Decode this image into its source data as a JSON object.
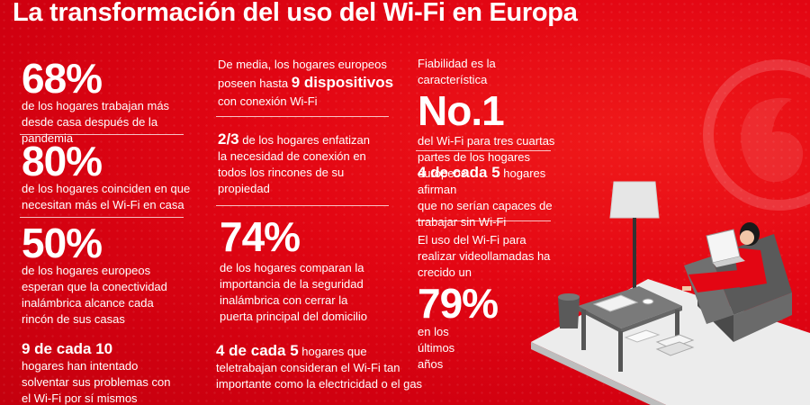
{
  "title": "La transformación del uso del Wi-Fi en Europa",
  "col1": [
    {
      "stat": "68%",
      "text": "de los hogares trabajan más desde casa después de la pandemia"
    },
    {
      "stat": "80%",
      "text": "de los hogares coinciden en que necesitan más el Wi-Fi en casa"
    },
    {
      "stat": "50%",
      "text": "de los hogares europeos esperan que la conectividad inalámbrica alcance cada rincón de sus casas"
    },
    {
      "stat": "9 de cada 10",
      "text": "hogares han intentado solventar sus problemas con el Wi-Fi por sí mismos"
    }
  ],
  "col2": {
    "devices": {
      "pre": "De media, los hogares europeos poseen hasta",
      "highlight": "9 dispositivos",
      "post": "con conexión Wi-Fi"
    },
    "connection": {
      "stat": "2/3",
      "text": "de los hogares enfatizan la necesidad de conexión en todos los rincones de su propiedad"
    },
    "security": {
      "stat": "74%",
      "text": "de los hogares comparan la importancia de la seguridad inalámbrica con cerrar la puerta principal del domicilio"
    },
    "telework": {
      "stat": "4 de cada 5",
      "text1": "hogares que",
      "text2": "teletrabajan consideran el Wi-Fi tan importante como la electricidad o el gas"
    }
  },
  "col3": {
    "reliability": {
      "pre": "Fiabilidad es la característica",
      "stat": "No.1",
      "post": "del Wi-Fi para tres cuartas partes de los hogares europeos"
    },
    "work": {
      "stat": "4 de cada 5",
      "text1": "hogares afirman",
      "text2": "que no serían capaces de trabajar sin Wi-Fi"
    },
    "video": {
      "pre": "El uso del Wi-Fi para realizar videollamadas ha crecido  un",
      "stat": "79%",
      "post": "en los últimos años"
    }
  },
  "colors": {
    "background": "#e30613",
    "text": "#ffffff"
  }
}
